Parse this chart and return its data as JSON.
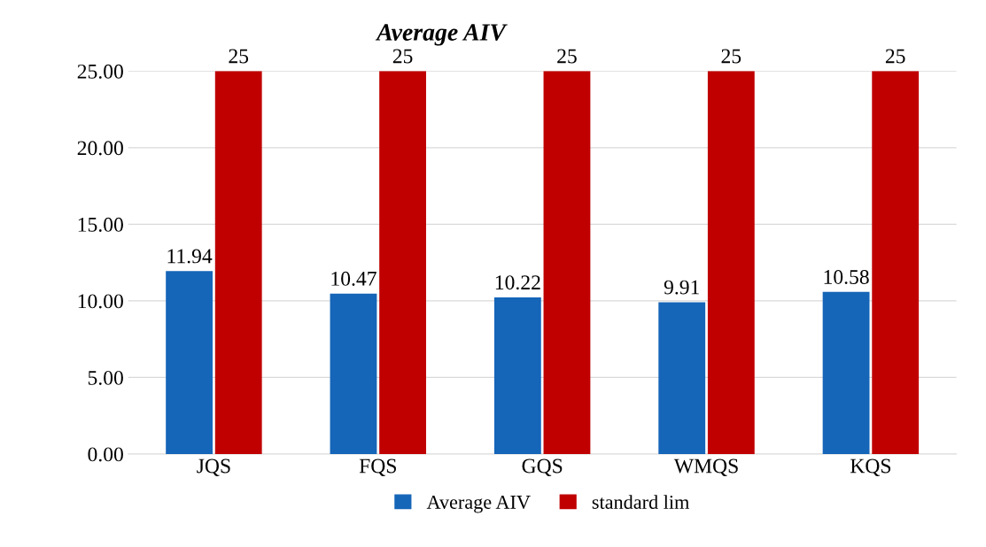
{
  "chart_data": {
    "type": "bar",
    "title": "Average AIV",
    "categories": [
      "JQS",
      "FQS",
      "GQS",
      "WMQS",
      "KQS"
    ],
    "series": [
      {
        "name": "Average AIV",
        "color": "#1565b8",
        "values": [
          11.94,
          10.47,
          10.22,
          9.91,
          10.58
        ]
      },
      {
        "name": "standard lim",
        "color": "#c00000",
        "values": [
          25,
          25,
          25,
          25,
          25
        ]
      }
    ],
    "ylim": [
      0,
      25
    ],
    "yticks": [
      {
        "value": 0,
        "label": "0.00"
      },
      {
        "value": 5,
        "label": "5.00"
      },
      {
        "value": 10,
        "label": "10.00"
      },
      {
        "value": 15,
        "label": "15.00"
      },
      {
        "value": 20,
        "label": "20.00"
      },
      {
        "value": 25,
        "label": "25.00"
      }
    ],
    "grid": "y",
    "legend": "bottom",
    "data_labels": true
  }
}
